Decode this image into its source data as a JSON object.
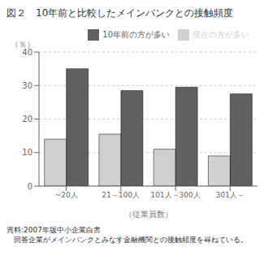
{
  "chart_data": {
    "type": "bar",
    "title": "図２　10年前と比較したメインバンクとの接触頻度",
    "categories": [
      "~20人",
      "21～100人",
      "101人～300人",
      "301人～"
    ],
    "xlabel": "（従業員数）",
    "ylabel": "（％）",
    "series": [
      {
        "name": "現在の方が多い",
        "color": "#d0d0d0",
        "values": [
          14.0,
          15.5,
          11.0,
          9.0
        ]
      },
      {
        "name": "10年前の方が多い",
        "color": "#606060",
        "values": [
          35.0,
          28.5,
          29.5,
          27.5
        ]
      }
    ],
    "ylim": [
      0,
      40
    ],
    "yticks": [
      0,
      10,
      20,
      30,
      40
    ],
    "grid": true,
    "legend": "upper right",
    "annotations": [
      "資料:2007年版中小企業白書",
      "　回答企業がメインバンクとみなす金融機関との接触頻度を尋ねている。"
    ]
  }
}
